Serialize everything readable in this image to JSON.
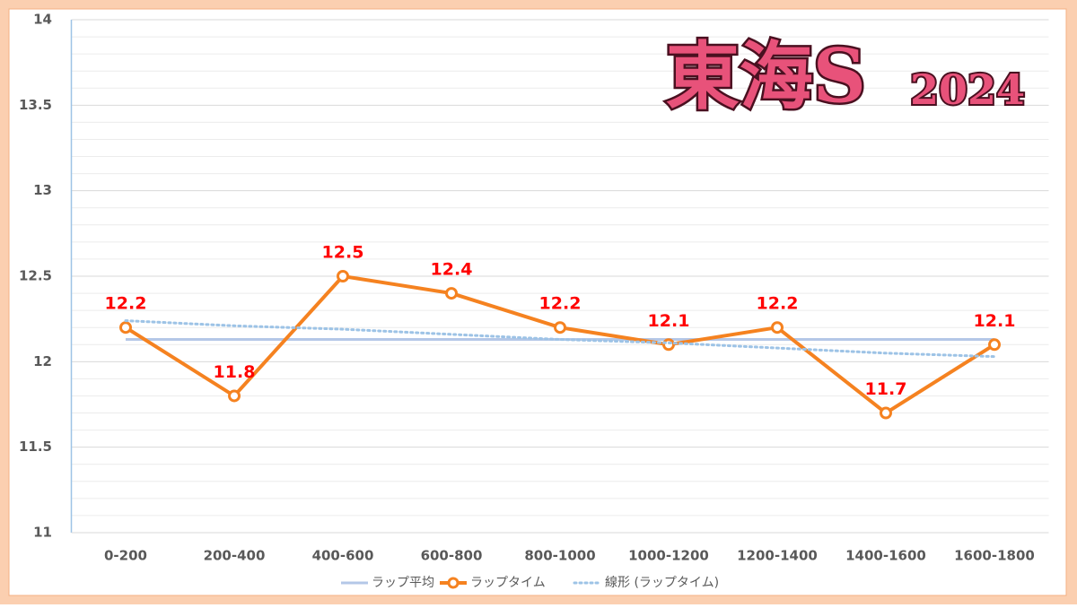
{
  "chart_data": {
    "type": "line",
    "title": "東海S",
    "subtitle": "2024",
    "categories": [
      "0-200",
      "200-400",
      "400-600",
      "600-800",
      "800-1000",
      "1000-1200",
      "1200-1400",
      "1400-1600",
      "1600-1800"
    ],
    "series": [
      {
        "name": "ラップ平均",
        "color": "#b4c7e7",
        "dash": "solid",
        "markers": false,
        "values": [
          12.13,
          12.13,
          12.13,
          12.13,
          12.13,
          12.13,
          12.13,
          12.13,
          12.13
        ]
      },
      {
        "name": "ラップタイム",
        "color": "#f58220",
        "dash": "solid",
        "markers": true,
        "data_labels": true,
        "values": [
          12.2,
          11.8,
          12.5,
          12.4,
          12.2,
          12.1,
          12.2,
          11.7,
          12.1
        ]
      },
      {
        "name": "線形 (ラップタイム)",
        "color": "#9dc3e6",
        "dash": "dotted",
        "markers": false,
        "values": [
          12.24,
          12.21,
          12.19,
          12.16,
          12.13,
          12.11,
          12.08,
          12.05,
          12.03
        ]
      }
    ],
    "ylim": [
      11,
      14
    ],
    "yticks": [
      11,
      11.5,
      12,
      12.5,
      13,
      13.5,
      14
    ],
    "minor_yticks": [
      11.1,
      11.2,
      11.3,
      11.4,
      11.6,
      11.7,
      11.8,
      11.9,
      12.1,
      12.2,
      12.3,
      12.4,
      12.6,
      12.7,
      12.8,
      12.9,
      13.1,
      13.2,
      13.3,
      13.4,
      13.6,
      13.7,
      13.8,
      13.9
    ],
    "grid": true,
    "legend": "bottom",
    "label_color": "#ff0000"
  }
}
